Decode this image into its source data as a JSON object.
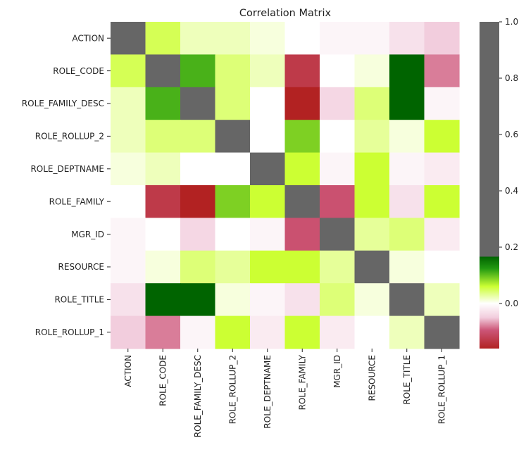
{
  "chart_data": {
    "type": "heatmap",
    "title": "Correlation Matrix",
    "xlabel": "",
    "ylabel": "",
    "rows": [
      "ACTION",
      "ROLE_CODE",
      "ROLE_FAMILY_DESC",
      "ROLE_ROLLUP_2",
      "ROLE_DEPTNAME",
      "ROLE_FAMILY",
      "MGR_ID",
      "RESOURCE",
      "ROLE_TITLE",
      "ROLE_ROLLUP_1"
    ],
    "columns": [
      "ACTION",
      "ROLE_CODE",
      "ROLE_FAMILY_DESC",
      "ROLE_ROLLUP_2",
      "ROLE_DEPTNAME",
      "ROLE_FAMILY",
      "MGR_ID",
      "RESOURCE",
      "ROLE_TITLE",
      "ROLE_ROLLUP_1"
    ],
    "values": [
      [
        1.0,
        0.05,
        0.02,
        0.02,
        0.01,
        0.0,
        -0.01,
        -0.01,
        -0.03,
        -0.05
      ],
      [
        0.05,
        1.0,
        0.11,
        0.04,
        0.02,
        -0.13,
        0.0,
        0.01,
        0.18,
        -0.08
      ],
      [
        0.02,
        0.11,
        1.0,
        0.04,
        0.0,
        -0.16,
        -0.04,
        0.04,
        0.2,
        -0.01
      ],
      [
        0.02,
        0.04,
        0.04,
        1.0,
        0.0,
        0.09,
        0.0,
        0.03,
        0.01,
        0.06
      ],
      [
        0.01,
        0.02,
        0.0,
        0.0,
        1.0,
        0.06,
        -0.01,
        0.06,
        -0.01,
        -0.02
      ],
      [
        0.0,
        -0.13,
        -0.16,
        0.09,
        0.06,
        1.0,
        -0.1,
        0.06,
        -0.03,
        0.06
      ],
      [
        -0.01,
        0.0,
        -0.04,
        0.0,
        -0.01,
        -0.1,
        1.0,
        0.03,
        0.04,
        -0.02
      ],
      [
        -0.01,
        0.01,
        0.04,
        0.03,
        0.06,
        0.06,
        0.03,
        1.0,
        0.01,
        0.0
      ],
      [
        -0.03,
        0.18,
        0.2,
        0.01,
        -0.01,
        -0.03,
        0.04,
        0.01,
        1.0,
        0.02
      ],
      [
        -0.05,
        -0.08,
        -0.01,
        0.06,
        -0.02,
        0.06,
        -0.02,
        0.0,
        0.02,
        1.0
      ]
    ],
    "colorbar": {
      "ticks": [
        1.0,
        0.8,
        0.6,
        0.4,
        0.2,
        0.0
      ],
      "tick_labels": [
        "1.0",
        "0.8",
        "0.6",
        "0.4",
        "0.2",
        "0.0"
      ],
      "range": [
        -0.16,
        1.0
      ]
    },
    "colors": {
      "diagonal": "#666666",
      "green_dark": "#006400",
      "yellow_green": "#ccff33",
      "white": "#ffffff",
      "pink": "#cc5577",
      "red_dark": "#b22222"
    },
    "grid": false,
    "legend": "colorbar-right"
  }
}
